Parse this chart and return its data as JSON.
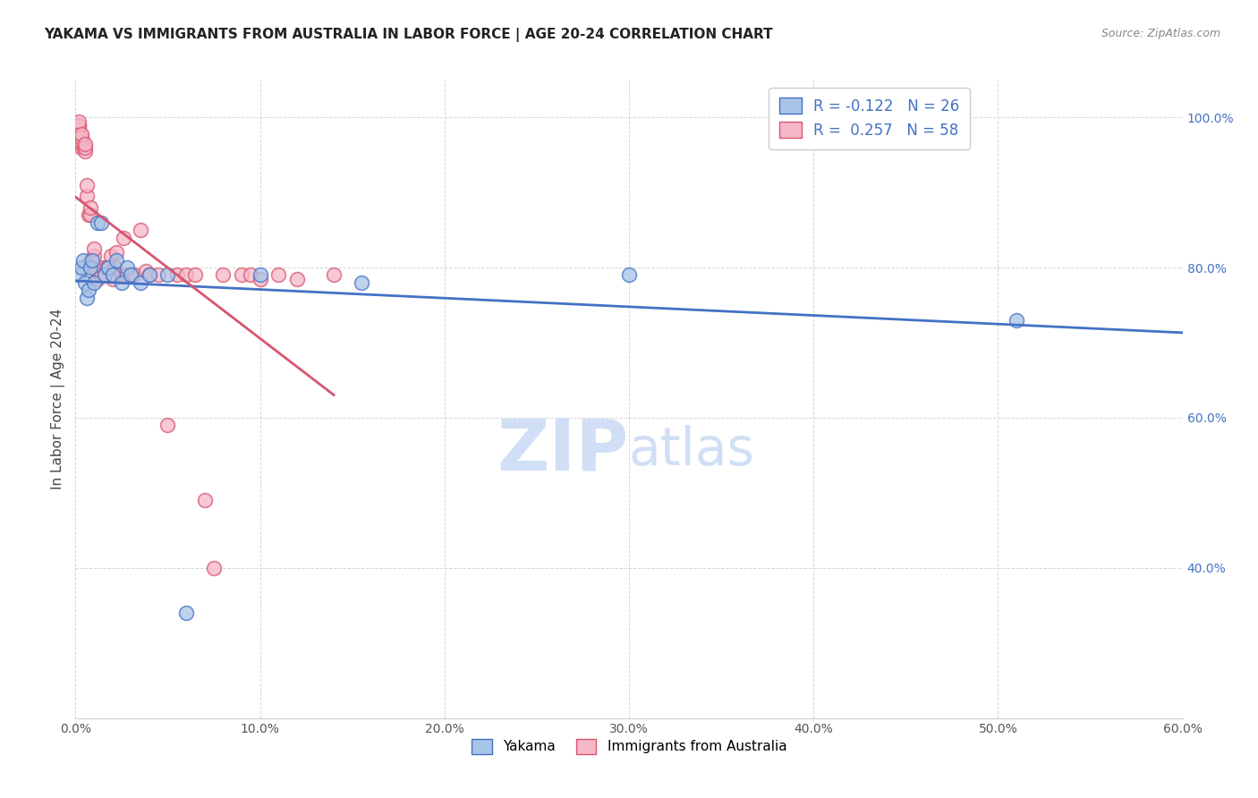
{
  "title": "YAKAMA VS IMMIGRANTS FROM AUSTRALIA IN LABOR FORCE | AGE 20-24 CORRELATION CHART",
  "source": "Source: ZipAtlas.com",
  "ylabel": "In Labor Force | Age 20-24",
  "xlim": [
    0.0,
    0.6
  ],
  "ylim": [
    0.2,
    1.05
  ],
  "xtick_labels": [
    "0.0%",
    "10.0%",
    "20.0%",
    "30.0%",
    "40.0%",
    "50.0%",
    "60.0%"
  ],
  "xtick_vals": [
    0.0,
    0.1,
    0.2,
    0.3,
    0.4,
    0.5,
    0.6
  ],
  "ytick_labels": [
    "40.0%",
    "60.0%",
    "80.0%",
    "100.0%"
  ],
  "ytick_vals": [
    0.4,
    0.6,
    0.8,
    1.0
  ],
  "legend_blue_r": "R = -0.122",
  "legend_blue_n": "N = 26",
  "legend_pink_r": "R =  0.257",
  "legend_pink_n": "N = 58",
  "blue_color": "#a8c4e8",
  "pink_color": "#f5b8c8",
  "blue_line_color": "#4472c4",
  "pink_line_color": "#d9546e",
  "watermark_zip": "ZIP",
  "watermark_atlas": "atlas",
  "watermark_color": "#d0dff5",
  "legend_label_blue": "Yakama",
  "legend_label_pink": "Immigrants from Australia",
  "blue_scatter_x": [
    0.002,
    0.003,
    0.004,
    0.005,
    0.006,
    0.007,
    0.008,
    0.009,
    0.01,
    0.012,
    0.014,
    0.016,
    0.018,
    0.02,
    0.022,
    0.025,
    0.028,
    0.03,
    0.035,
    0.04,
    0.05,
    0.06,
    0.1,
    0.155,
    0.3,
    0.51
  ],
  "blue_scatter_y": [
    0.79,
    0.8,
    0.81,
    0.78,
    0.76,
    0.77,
    0.8,
    0.81,
    0.78,
    0.86,
    0.86,
    0.79,
    0.8,
    0.79,
    0.81,
    0.78,
    0.8,
    0.79,
    0.78,
    0.79,
    0.79,
    0.34,
    0.79,
    0.78,
    0.79,
    0.73
  ],
  "pink_scatter_x": [
    0.002,
    0.002,
    0.002,
    0.002,
    0.002,
    0.002,
    0.002,
    0.002,
    0.003,
    0.003,
    0.003,
    0.003,
    0.003,
    0.005,
    0.005,
    0.005,
    0.006,
    0.006,
    0.007,
    0.008,
    0.008,
    0.008,
    0.01,
    0.01,
    0.01,
    0.012,
    0.012,
    0.014,
    0.015,
    0.016,
    0.017,
    0.018,
    0.019,
    0.02,
    0.021,
    0.022,
    0.025,
    0.026,
    0.028,
    0.03,
    0.032,
    0.035,
    0.038,
    0.04,
    0.045,
    0.05,
    0.055,
    0.06,
    0.065,
    0.07,
    0.075,
    0.08,
    0.09,
    0.095,
    0.1,
    0.11,
    0.12,
    0.14
  ],
  "pink_scatter_y": [
    0.97,
    0.975,
    0.975,
    0.978,
    0.982,
    0.988,
    0.99,
    0.994,
    0.96,
    0.965,
    0.968,
    0.973,
    0.978,
    0.955,
    0.96,
    0.965,
    0.895,
    0.91,
    0.87,
    0.87,
    0.88,
    0.81,
    0.8,
    0.815,
    0.825,
    0.785,
    0.795,
    0.79,
    0.8,
    0.79,
    0.8,
    0.8,
    0.815,
    0.785,
    0.8,
    0.82,
    0.79,
    0.84,
    0.79,
    0.79,
    0.79,
    0.85,
    0.795,
    0.79,
    0.79,
    0.59,
    0.79,
    0.79,
    0.79,
    0.49,
    0.4,
    0.79,
    0.79,
    0.79,
    0.785,
    0.79,
    0.785,
    0.79
  ]
}
